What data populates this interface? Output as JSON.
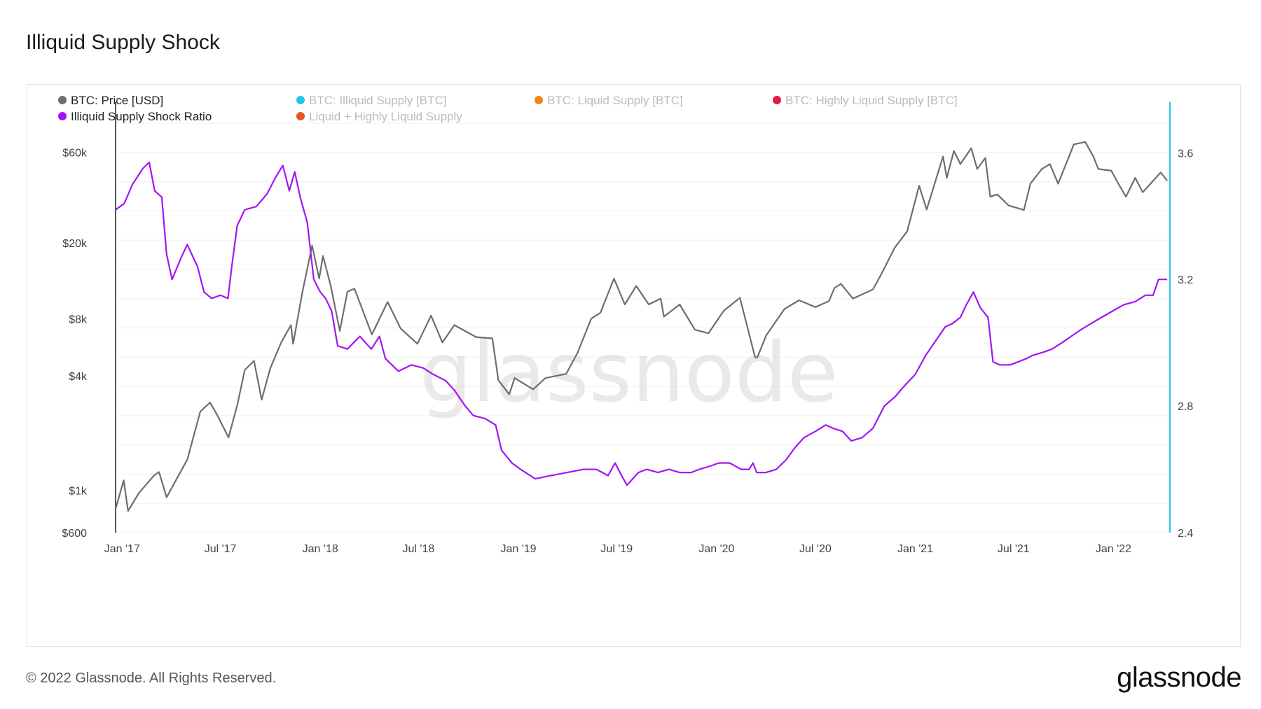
{
  "page": {
    "title": "Illiquid Supply Shock",
    "copyright": "© 2022 Glassnode. All Rights Reserved.",
    "logo": "glassnode"
  },
  "chart_data": {
    "type": "line",
    "title": "Illiquid Supply Shock",
    "watermark": "glassnode",
    "legend": [
      {
        "name": "BTC: Price [USD]",
        "color": "#6e6e6e",
        "active": true
      },
      {
        "name": "BTC: Illiquid Supply [BTC]",
        "color": "#1fc6ea",
        "active": false
      },
      {
        "name": "BTC: Liquid Supply [BTC]",
        "color": "#f0861d",
        "active": false
      },
      {
        "name": "BTC: Highly Liquid Supply [BTC]",
        "color": "#e5194a",
        "active": false
      },
      {
        "name": "Illiquid Supply Shock Ratio",
        "color": "#a414f7",
        "active": true
      },
      {
        "name": "Liquid + Highly Liquid Supply",
        "color": "#e3571f",
        "active": false
      }
    ],
    "x_axis": {
      "ticks": [
        "Jan '17",
        "Jul '17",
        "Jan '18",
        "Jul '18",
        "Jan '19",
        "Jul '19",
        "Jan '20",
        "Jul '20",
        "Jan '21",
        "Jul '21",
        "Jan '22"
      ],
      "range": [
        "2016-12-20",
        "2022-04-15"
      ]
    },
    "y_left": {
      "scale": "log",
      "range": [
        600,
        110000
      ],
      "ticks": [
        {
          "value": 60000,
          "label": "$60k"
        },
        {
          "value": 20000,
          "label": "$20k"
        },
        {
          "value": 8000,
          "label": "$8k"
        },
        {
          "value": 4000,
          "label": "$4k"
        },
        {
          "value": 1000,
          "label": "$1k"
        },
        {
          "value": 600,
          "label": "$600"
        }
      ]
    },
    "y_right": {
      "scale": "linear",
      "range": [
        2.4,
        3.76
      ],
      "ticks": [
        {
          "value": 3.6,
          "label": "3.6"
        },
        {
          "value": 3.2,
          "label": "3.2"
        },
        {
          "value": 2.8,
          "label": "2.8"
        },
        {
          "value": 2.4,
          "label": "2.4"
        }
      ]
    },
    "grid": true,
    "series": [
      {
        "name": "BTC: Price [USD]",
        "axis": "left",
        "color": "#6e6e6e",
        "points": [
          [
            "2016-12-20",
            800
          ],
          [
            "2017-01-04",
            1130
          ],
          [
            "2017-01-12",
            780
          ],
          [
            "2017-02-01",
            970
          ],
          [
            "2017-03-01",
            1200
          ],
          [
            "2017-03-10",
            1250
          ],
          [
            "2017-03-24",
            920
          ],
          [
            "2017-04-15",
            1200
          ],
          [
            "2017-05-01",
            1450
          ],
          [
            "2017-05-25",
            2600
          ],
          [
            "2017-06-12",
            2900
          ],
          [
            "2017-06-25",
            2500
          ],
          [
            "2017-07-16",
            1900
          ],
          [
            "2017-08-01",
            2800
          ],
          [
            "2017-08-15",
            4300
          ],
          [
            "2017-09-01",
            4800
          ],
          [
            "2017-09-15",
            3000
          ],
          [
            "2017-10-01",
            4400
          ],
          [
            "2017-10-21",
            6000
          ],
          [
            "2017-11-08",
            7400
          ],
          [
            "2017-11-12",
            5900
          ],
          [
            "2017-11-29",
            11000
          ],
          [
            "2017-12-17",
            19400
          ],
          [
            "2017-12-30",
            13000
          ],
          [
            "2018-01-06",
            17100
          ],
          [
            "2018-01-20",
            12000
          ],
          [
            "2018-02-06",
            6900
          ],
          [
            "2018-02-20",
            11100
          ],
          [
            "2018-03-05",
            11500
          ],
          [
            "2018-04-06",
            6600
          ],
          [
            "2018-05-05",
            9800
          ],
          [
            "2018-05-29",
            7100
          ],
          [
            "2018-06-29",
            5900
          ],
          [
            "2018-07-24",
            8300
          ],
          [
            "2018-08-14",
            6000
          ],
          [
            "2018-09-05",
            7400
          ],
          [
            "2018-10-15",
            6400
          ],
          [
            "2018-11-14",
            6300
          ],
          [
            "2018-11-25",
            3800
          ],
          [
            "2018-12-15",
            3200
          ],
          [
            "2018-12-25",
            3900
          ],
          [
            "2019-01-28",
            3400
          ],
          [
            "2019-02-20",
            3900
          ],
          [
            "2019-03-30",
            4100
          ],
          [
            "2019-04-20",
            5300
          ],
          [
            "2019-05-15",
            8000
          ],
          [
            "2019-06-01",
            8600
          ],
          [
            "2019-06-26",
            13000
          ],
          [
            "2019-07-16",
            9500
          ],
          [
            "2019-08-06",
            11900
          ],
          [
            "2019-08-29",
            9500
          ],
          [
            "2019-09-20",
            10200
          ],
          [
            "2019-09-26",
            8200
          ],
          [
            "2019-10-25",
            9500
          ],
          [
            "2019-11-22",
            7000
          ],
          [
            "2019-12-17",
            6700
          ],
          [
            "2020-01-14",
            8800
          ],
          [
            "2020-02-13",
            10300
          ],
          [
            "2020-03-12",
            5000
          ],
          [
            "2020-03-16",
            5000
          ],
          [
            "2020-04-01",
            6500
          ],
          [
            "2020-05-05",
            9000
          ],
          [
            "2020-06-01",
            10000
          ],
          [
            "2020-07-01",
            9200
          ],
          [
            "2020-07-26",
            9900
          ],
          [
            "2020-08-05",
            11600
          ],
          [
            "2020-08-17",
            12200
          ],
          [
            "2020-09-08",
            10200
          ],
          [
            "2020-10-15",
            11400
          ],
          [
            "2020-11-01",
            14000
          ],
          [
            "2020-11-24",
            18900
          ],
          [
            "2020-12-17",
            23000
          ],
          [
            "2021-01-08",
            40000
          ],
          [
            "2021-01-22",
            30000
          ],
          [
            "2021-02-21",
            57000
          ],
          [
            "2021-02-28",
            44000
          ],
          [
            "2021-03-13",
            61000
          ],
          [
            "2021-03-25",
            52000
          ],
          [
            "2021-04-14",
            63000
          ],
          [
            "2021-04-25",
            49000
          ],
          [
            "2021-05-10",
            56000
          ],
          [
            "2021-05-19",
            35000
          ],
          [
            "2021-06-01",
            36000
          ],
          [
            "2021-06-22",
            31500
          ],
          [
            "2021-07-20",
            29800
          ],
          [
            "2021-08-01",
            41000
          ],
          [
            "2021-08-22",
            49000
          ],
          [
            "2021-09-06",
            52000
          ],
          [
            "2021-09-21",
            41000
          ],
          [
            "2021-10-10",
            56000
          ],
          [
            "2021-10-20",
            66000
          ],
          [
            "2021-11-10",
            68000
          ],
          [
            "2021-11-25",
            57000
          ],
          [
            "2021-12-04",
            49000
          ],
          [
            "2021-12-28",
            48000
          ],
          [
            "2022-01-10",
            41000
          ],
          [
            "2022-01-24",
            35000
          ],
          [
            "2022-02-10",
            44000
          ],
          [
            "2022-02-24",
            37000
          ],
          [
            "2022-03-29",
            47000
          ],
          [
            "2022-04-10",
            42500
          ]
        ]
      },
      {
        "name": "Illiquid Supply Shock Ratio",
        "axis": "right",
        "color": "#a414f7",
        "points": [
          [
            "2016-12-20",
            3.42
          ],
          [
            "2017-01-05",
            3.44
          ],
          [
            "2017-01-20",
            3.5
          ],
          [
            "2017-02-08",
            3.55
          ],
          [
            "2017-02-20",
            3.57
          ],
          [
            "2017-03-02",
            3.48
          ],
          [
            "2017-03-15",
            3.46
          ],
          [
            "2017-03-24",
            3.28
          ],
          [
            "2017-04-03",
            3.2
          ],
          [
            "2017-04-20",
            3.27
          ],
          [
            "2017-05-01",
            3.31
          ],
          [
            "2017-05-20",
            3.24
          ],
          [
            "2017-06-01",
            3.16
          ],
          [
            "2017-06-15",
            3.14
          ],
          [
            "2017-07-01",
            3.15
          ],
          [
            "2017-07-15",
            3.14
          ],
          [
            "2017-07-22",
            3.24
          ],
          [
            "2017-08-01",
            3.37
          ],
          [
            "2017-08-15",
            3.42
          ],
          [
            "2017-09-05",
            3.43
          ],
          [
            "2017-09-25",
            3.47
          ],
          [
            "2017-10-10",
            3.52
          ],
          [
            "2017-10-24",
            3.56
          ],
          [
            "2017-11-05",
            3.48
          ],
          [
            "2017-11-15",
            3.54
          ],
          [
            "2017-11-25",
            3.46
          ],
          [
            "2017-12-08",
            3.38
          ],
          [
            "2017-12-20",
            3.2
          ],
          [
            "2018-01-01",
            3.16
          ],
          [
            "2018-01-11",
            3.14
          ],
          [
            "2018-01-22",
            3.1
          ],
          [
            "2018-02-02",
            2.99
          ],
          [
            "2018-02-20",
            2.98
          ],
          [
            "2018-03-15",
            3.02
          ],
          [
            "2018-04-05",
            2.98
          ],
          [
            "2018-04-20",
            3.02
          ],
          [
            "2018-05-01",
            2.95
          ],
          [
            "2018-05-25",
            2.91
          ],
          [
            "2018-06-18",
            2.93
          ],
          [
            "2018-07-10",
            2.92
          ],
          [
            "2018-07-28",
            2.9
          ],
          [
            "2018-08-20",
            2.88
          ],
          [
            "2018-09-05",
            2.85
          ],
          [
            "2018-09-25",
            2.8
          ],
          [
            "2018-10-10",
            2.77
          ],
          [
            "2018-11-01",
            2.76
          ],
          [
            "2018-11-20",
            2.74
          ],
          [
            "2018-12-01",
            2.66
          ],
          [
            "2018-12-20",
            2.62
          ],
          [
            "2019-01-05",
            2.6
          ],
          [
            "2019-02-01",
            2.57
          ],
          [
            "2019-03-01",
            2.58
          ],
          [
            "2019-04-01",
            2.59
          ],
          [
            "2019-05-01",
            2.6
          ],
          [
            "2019-05-25",
            2.6
          ],
          [
            "2019-06-15",
            2.58
          ],
          [
            "2019-06-28",
            2.62
          ],
          [
            "2019-07-10",
            2.58
          ],
          [
            "2019-07-20",
            2.55
          ],
          [
            "2019-08-10",
            2.59
          ],
          [
            "2019-08-25",
            2.6
          ],
          [
            "2019-09-15",
            2.59
          ],
          [
            "2019-10-05",
            2.6
          ],
          [
            "2019-10-25",
            2.59
          ],
          [
            "2019-11-15",
            2.59
          ],
          [
            "2019-11-30",
            2.6
          ],
          [
            "2019-12-20",
            2.61
          ],
          [
            "2020-01-05",
            2.62
          ],
          [
            "2020-01-25",
            2.62
          ],
          [
            "2020-02-15",
            2.6
          ],
          [
            "2020-03-01",
            2.6
          ],
          [
            "2020-03-08",
            2.62
          ],
          [
            "2020-03-15",
            2.59
          ],
          [
            "2020-04-01",
            2.59
          ],
          [
            "2020-04-20",
            2.6
          ],
          [
            "2020-05-08",
            2.63
          ],
          [
            "2020-05-25",
            2.67
          ],
          [
            "2020-06-10",
            2.7
          ],
          [
            "2020-07-01",
            2.72
          ],
          [
            "2020-07-20",
            2.74
          ],
          [
            "2020-08-02",
            2.73
          ],
          [
            "2020-08-20",
            2.72
          ],
          [
            "2020-09-05",
            2.69
          ],
          [
            "2020-09-25",
            2.7
          ],
          [
            "2020-10-15",
            2.73
          ],
          [
            "2020-11-05",
            2.8
          ],
          [
            "2020-11-25",
            2.83
          ],
          [
            "2020-12-10",
            2.86
          ],
          [
            "2021-01-01",
            2.9
          ],
          [
            "2021-01-20",
            2.96
          ],
          [
            "2021-02-05",
            3.0
          ],
          [
            "2021-02-25",
            3.05
          ],
          [
            "2021-03-10",
            3.06
          ],
          [
            "2021-03-25",
            3.08
          ],
          [
            "2021-04-05",
            3.12
          ],
          [
            "2021-04-18",
            3.16
          ],
          [
            "2021-05-01",
            3.11
          ],
          [
            "2021-05-15",
            3.08
          ],
          [
            "2021-05-24",
            2.94
          ],
          [
            "2021-06-05",
            2.93
          ],
          [
            "2021-06-25",
            2.93
          ],
          [
            "2021-07-10",
            2.94
          ],
          [
            "2021-07-25",
            2.95
          ],
          [
            "2021-08-05",
            2.96
          ],
          [
            "2021-08-25",
            2.97
          ],
          [
            "2021-09-10",
            2.98
          ],
          [
            "2021-09-28",
            3.0
          ],
          [
            "2021-10-15",
            3.02
          ],
          [
            "2021-11-01",
            3.04
          ],
          [
            "2021-11-20",
            3.06
          ],
          [
            "2021-12-10",
            3.08
          ],
          [
            "2021-12-30",
            3.1
          ],
          [
            "2022-01-20",
            3.12
          ],
          [
            "2022-02-10",
            3.13
          ],
          [
            "2022-03-01",
            3.15
          ],
          [
            "2022-03-15",
            3.15
          ],
          [
            "2022-03-25",
            3.2
          ],
          [
            "2022-04-10",
            3.2
          ]
        ]
      }
    ]
  }
}
